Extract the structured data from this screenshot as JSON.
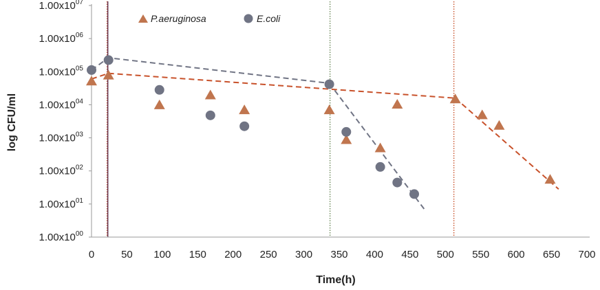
{
  "chart_data": {
    "type": "scatter",
    "xlabel": "Time(h)",
    "ylabel": "log CFU/ml",
    "xlim": [
      0,
      700
    ],
    "ylim": [
      0,
      7
    ],
    "y_scale": "log10",
    "x_ticks": [
      "0",
      "50",
      "100",
      "150",
      "200",
      "250",
      "300",
      "350",
      "400",
      "450",
      "500",
      "550",
      "600",
      "650",
      "700"
    ],
    "y_ticks": [
      {
        "base": "1.00x10",
        "exp": "00"
      },
      {
        "base": "1.00x10",
        "exp": "01"
      },
      {
        "base": "1.00x10",
        "exp": "02"
      },
      {
        "base": "1.00x10",
        "exp": "03"
      },
      {
        "base": "1.00x10",
        "exp": "04"
      },
      {
        "base": "1.00x10",
        "exp": "05"
      },
      {
        "base": "1.00x10",
        "exp": "06"
      },
      {
        "base": "1.00x10",
        "exp": "07"
      }
    ],
    "grid": false,
    "legend_position": "top-left",
    "series": [
      {
        "name": "P.aeruginosa",
        "marker": "triangle",
        "color": "#c0754e",
        "points": [
          {
            "x": 0,
            "y": 4.72
          },
          {
            "x": 24,
            "y": 4.9
          },
          {
            "x": 96,
            "y": 4.0
          },
          {
            "x": 168,
            "y": 4.3
          },
          {
            "x": 216,
            "y": 3.85
          },
          {
            "x": 336,
            "y": 3.85
          },
          {
            "x": 360,
            "y": 2.95
          },
          {
            "x": 408,
            "y": 2.7
          },
          {
            "x": 432,
            "y": 4.02
          },
          {
            "x": 514,
            "y": 4.18
          },
          {
            "x": 552,
            "y": 3.7
          },
          {
            "x": 576,
            "y": 3.38
          },
          {
            "x": 648,
            "y": 1.75
          }
        ]
      },
      {
        "name": "E.coli",
        "marker": "circle",
        "color": "#707484",
        "points": [
          {
            "x": 0,
            "y": 5.05
          },
          {
            "x": 24,
            "y": 5.35
          },
          {
            "x": 96,
            "y": 4.45
          },
          {
            "x": 168,
            "y": 3.68
          },
          {
            "x": 216,
            "y": 3.35
          },
          {
            "x": 336,
            "y": 4.62
          },
          {
            "x": 360,
            "y": 3.18
          },
          {
            "x": 408,
            "y": 2.12
          },
          {
            "x": 432,
            "y": 1.65
          },
          {
            "x": 456,
            "y": 1.3
          }
        ]
      }
    ],
    "trend_lines": [
      {
        "series": "P.aeruginosa",
        "color": "#c8512a",
        "points": [
          {
            "x": 0,
            "y": 4.78
          },
          {
            "x": 24,
            "y": 4.95
          },
          {
            "x": 514,
            "y": 4.2
          }
        ]
      },
      {
        "series": "P.aeruginosa",
        "color": "#c8512a",
        "points": [
          {
            "x": 514,
            "y": 4.2
          },
          {
            "x": 660,
            "y": 1.45
          }
        ]
      },
      {
        "series": "E.coli",
        "color": "#707484",
        "points": [
          {
            "x": 0,
            "y": 5.05
          },
          {
            "x": 24,
            "y": 5.42
          },
          {
            "x": 336,
            "y": 4.65
          }
        ]
      },
      {
        "series": "E.coli",
        "color": "#707484",
        "points": [
          {
            "x": 336,
            "y": 4.65
          },
          {
            "x": 470,
            "y": 0.85
          }
        ]
      }
    ],
    "reference_lines": [
      {
        "x": 22,
        "color": "#c8512a",
        "style": "dotted"
      },
      {
        "x": 23,
        "color": "#6a3c57",
        "style": "solid"
      },
      {
        "x": 337,
        "color": "#6d8a5a",
        "style": "dotted"
      },
      {
        "x": 512,
        "color": "#c8512a",
        "style": "dotted"
      }
    ]
  }
}
